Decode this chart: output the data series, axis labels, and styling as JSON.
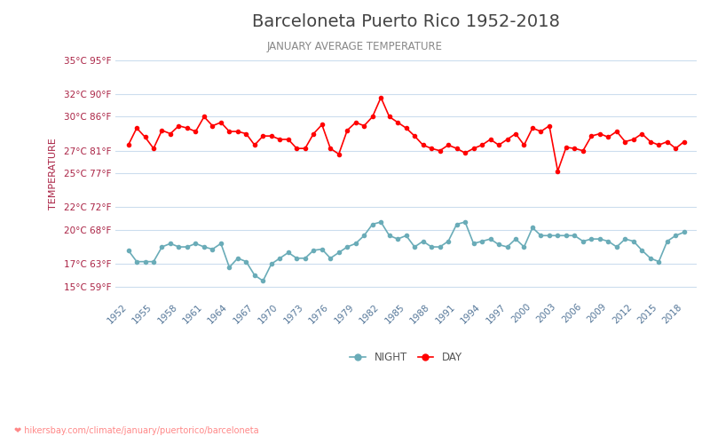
{
  "title": "Barceloneta Puerto Rico 1952-2018",
  "subtitle": "JANUARY AVERAGE TEMPERATURE",
  "ylabel": "TEMPERATURE",
  "url_text": "hikersbay.com/climate/january/puertorico/barceloneta",
  "years": [
    1952,
    1953,
    1954,
    1955,
    1956,
    1957,
    1958,
    1959,
    1960,
    1961,
    1962,
    1963,
    1964,
    1965,
    1966,
    1967,
    1968,
    1969,
    1970,
    1971,
    1972,
    1973,
    1974,
    1975,
    1976,
    1977,
    1978,
    1979,
    1980,
    1981,
    1982,
    1983,
    1984,
    1985,
    1986,
    1987,
    1988,
    1989,
    1990,
    1991,
    1992,
    1993,
    1994,
    1995,
    1996,
    1997,
    1998,
    1999,
    2000,
    2001,
    2002,
    2003,
    2004,
    2005,
    2006,
    2007,
    2008,
    2009,
    2010,
    2011,
    2012,
    2013,
    2014,
    2015,
    2016,
    2017,
    2018
  ],
  "day_temps": [
    27.5,
    29.0,
    28.2,
    27.2,
    28.8,
    28.5,
    29.2,
    29.0,
    28.7,
    30.0,
    29.2,
    29.5,
    28.7,
    28.7,
    28.5,
    27.5,
    28.3,
    28.3,
    28.0,
    28.0,
    27.2,
    27.2,
    28.5,
    29.3,
    27.2,
    26.7,
    28.8,
    29.5,
    29.2,
    30.0,
    31.7,
    30.0,
    29.5,
    29.0,
    28.3,
    27.5,
    27.2,
    27.0,
    27.5,
    27.2,
    26.8,
    27.2,
    27.5,
    28.0,
    27.5,
    28.0,
    28.5,
    27.5,
    29.0,
    28.7,
    29.2,
    25.2,
    27.3,
    27.2,
    27.0,
    28.3,
    28.5,
    28.2,
    28.7,
    27.8,
    28.0,
    28.5,
    27.8,
    27.5,
    27.8,
    27.2,
    27.8
  ],
  "night_temps": [
    18.2,
    17.2,
    17.2,
    17.2,
    18.5,
    18.8,
    18.5,
    18.5,
    18.8,
    18.5,
    18.3,
    18.8,
    16.7,
    17.5,
    17.2,
    16.0,
    15.5,
    17.0,
    17.5,
    18.0,
    17.5,
    17.5,
    18.2,
    18.3,
    17.5,
    18.0,
    18.5,
    18.8,
    19.5,
    20.5,
    20.7,
    19.5,
    19.2,
    19.5,
    18.5,
    19.0,
    18.5,
    18.5,
    19.0,
    20.5,
    20.7,
    18.8,
    19.0,
    19.2,
    18.7,
    18.5,
    19.2,
    18.5,
    20.2,
    19.5,
    19.5,
    19.5,
    19.5,
    19.5,
    19.0,
    19.2,
    19.2,
    19.0,
    18.5,
    19.2,
    19.0,
    18.2,
    17.5,
    17.2,
    19.0,
    19.5,
    19.8
  ],
  "y_ticks_c": [
    15,
    17,
    20,
    22,
    25,
    27,
    30,
    32,
    35
  ],
  "y_ticks_labels": [
    "15°C 59°F",
    "17°C 63°F",
    "20°C 68°F",
    "22°C 72°F",
    "25°C 77°F",
    "27°C 81°F",
    "30°C 86°F",
    "32°C 90°F",
    "35°C 95°F"
  ],
  "x_ticks": [
    1952,
    1955,
    1958,
    1961,
    1964,
    1967,
    1970,
    1973,
    1976,
    1979,
    1982,
    1985,
    1988,
    1991,
    1994,
    1997,
    2000,
    2003,
    2006,
    2009,
    2012,
    2015,
    2018
  ],
  "day_color": "#ff0000",
  "night_color": "#6aacb8",
  "grid_color": "#ccddee",
  "title_color": "#444444",
  "subtitle_color": "#888888",
  "label_color": "#aa2244",
  "background_color": "#ffffff",
  "url_color": "#ff8888"
}
